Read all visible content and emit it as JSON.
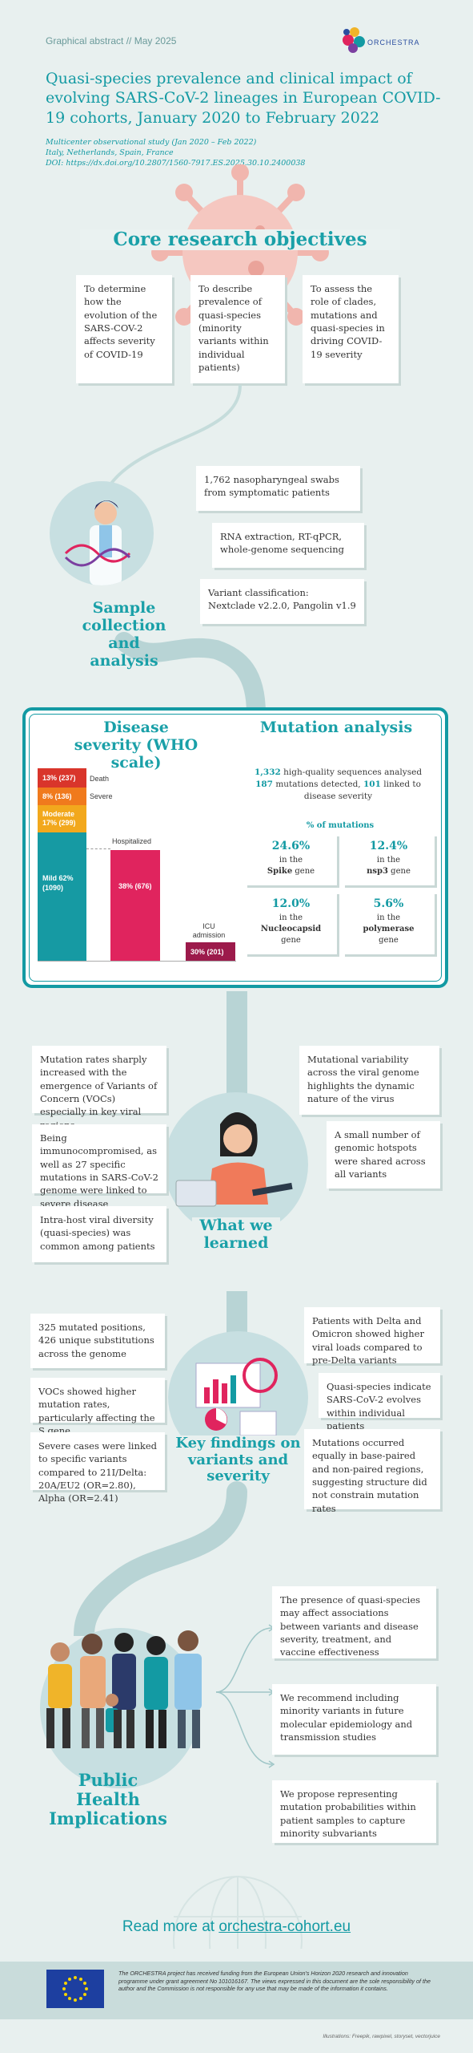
{
  "header": {
    "tag": "Graphical abstract // May 2025",
    "logo_text": "ORCHESTRA",
    "title": "Quasi-species prevalence and clinical impact of evolving SARS-CoV-2 lineages in European COVID-19 cohorts, January 2020 to February 2022",
    "meta1": "Multicenter observational study (Jan 2020 – Feb 2022)",
    "meta2": "Italy, Netherlands, Spain, France",
    "meta3": "DOI: https://dx.doi.org/10.2807/1560-7917.ES.2025.30.10.2400038"
  },
  "objectives": {
    "heading": "Core research objectives",
    "items": [
      "To determine how the evolution of the SARS-COV-2 affects severity of COVID-19",
      "To describe prevalence of quasi-species (minority variants within individual patients)",
      "To assess the role of clades, mutations and quasi-species in driving COVID-19 severity"
    ]
  },
  "sample": {
    "heading": "Sample collection and analysis",
    "items": [
      "1,762 nasopharyngeal swabs from symptomatic patients",
      "RNA extraction, RT-qPCR, whole-genome sequencing",
      "Variant classification: Nextclade v2.2.0, Pangolin v1.9"
    ]
  },
  "severity": {
    "heading": "Disease severity (WHO scale)",
    "death_label": "Death",
    "severe_label": "Severe",
    "hosp_label": "Hospitalized",
    "icu_label": "ICU admission",
    "death_val": "13% (237)",
    "severe_val": "8% (136)",
    "moderate_val": "Moderate 17% (299)",
    "mild_val": "Mild 62% (1090)",
    "hosp_val": "38% (676)",
    "icu_val": "30% (201)"
  },
  "chart_data": [
    {
      "type": "bar",
      "title": "Disease severity (WHO scale)",
      "stacked": true,
      "categories": [
        "Death",
        "Severe",
        "Moderate",
        "Mild"
      ],
      "values": [
        13,
        8,
        17,
        62
      ],
      "counts": [
        237,
        136,
        299,
        1090
      ]
    },
    {
      "type": "bar",
      "categories": [
        "Hospitalized",
        "ICU admission"
      ],
      "values": [
        38,
        30
      ],
      "counts": [
        676,
        201
      ]
    }
  ],
  "mutation": {
    "heading": "Mutation analysis",
    "n1": "1,332",
    "t1": " high-quality sequences analysed",
    "n2": "187",
    "t2": " mutations detected, ",
    "n3": "101",
    "t3": " linked to disease severity",
    "pct_heading": "% of mutations",
    "cards": [
      {
        "pct": "24.6%",
        "pre": "in the",
        "gene": "Spike",
        "post": " gene"
      },
      {
        "pct": "12.4%",
        "pre": "in the",
        "gene": "nsp3",
        "post": " gene"
      },
      {
        "pct": "12.0%",
        "pre": "in the",
        "gene": "Nucleocapsid",
        "post": "gene"
      },
      {
        "pct": "5.6%",
        "pre": "in the",
        "gene": "polymerase",
        "post": "gene"
      }
    ]
  },
  "learned": {
    "heading": "What we learned",
    "items": [
      "Mutation rates sharply increased with the emergence of Variants of Concern (VOCs) especially in key viral regions",
      "Being immunocompromised, as well as 27 specific mutations in SARS-CoV-2 genome were linked to severe disease",
      "Intra-host viral diversity (quasi-species) was common among patients",
      "Mutational variability across the viral genome highlights the dynamic nature of the virus",
      "A small number of genomic hotspots were shared across all variants"
    ]
  },
  "findings": {
    "heading": "Key findings on variants and severity",
    "items": [
      "325 mutated positions, 426 unique substitutions across the genome",
      "VOCs showed higher mutation rates, particularly affecting the S gene",
      "Severe cases were linked to specific variants compared to 21I/Delta: 20A/EU2 (OR=2.80), Alpha (OR=2.41)",
      "Patients with Delta and Omicron showed higher viral loads compared to pre-Delta variants",
      "Quasi-species indicate SARS-CoV-2 evolves within individual patients",
      "Mutations occurred equally in base-paired and non-paired regions, suggesting structure did not constrain mutation rates"
    ]
  },
  "implications": {
    "heading": "Public Health Implications",
    "items": [
      "The presence of quasi-species may affect associations between variants and disease severity, treatment, and vaccine effectiveness",
      "We recommend including minority variants in future molecular epidemiology and transmission studies",
      "We propose representing mutation probabilities within patient samples to capture minority subvariants"
    ]
  },
  "footer": {
    "read_more": "Read more at ",
    "link": "orchestra-cohort.eu",
    "funding": "The ORCHESTRA project has received funding from the European Union's Horizon 2020 research and innovation programme under grant agreement No 101016167. The views expressed in this document are the sole responsibility of the author and the Commission is not responsible for any use that may be made of the information it contains.",
    "credits": "Illustrations: Freepik, rawpixel, storyset, vectorjuice"
  },
  "colors": {
    "teal": "#139aa3",
    "death": "#d9352b",
    "severe": "#f07a1d",
    "moderate": "#f2a81d",
    "mild": "#169aa3",
    "hosp": "#e0245e",
    "icu": "#9c1a4b"
  }
}
